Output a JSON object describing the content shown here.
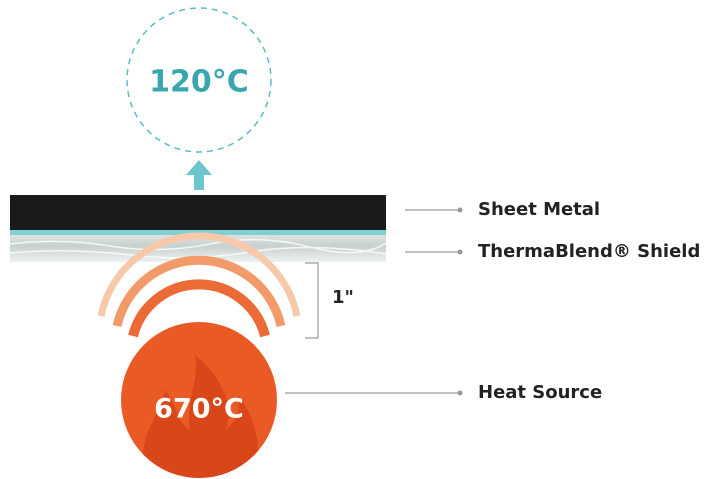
{
  "top_temperature": "120°C",
  "layers": [
    {
      "label": "Sheet Metal"
    },
    {
      "label": "ThermaBlend® Shield"
    }
  ],
  "gap": "1\"",
  "source": {
    "temperature": "670°C",
    "label": "Heat Source"
  }
}
